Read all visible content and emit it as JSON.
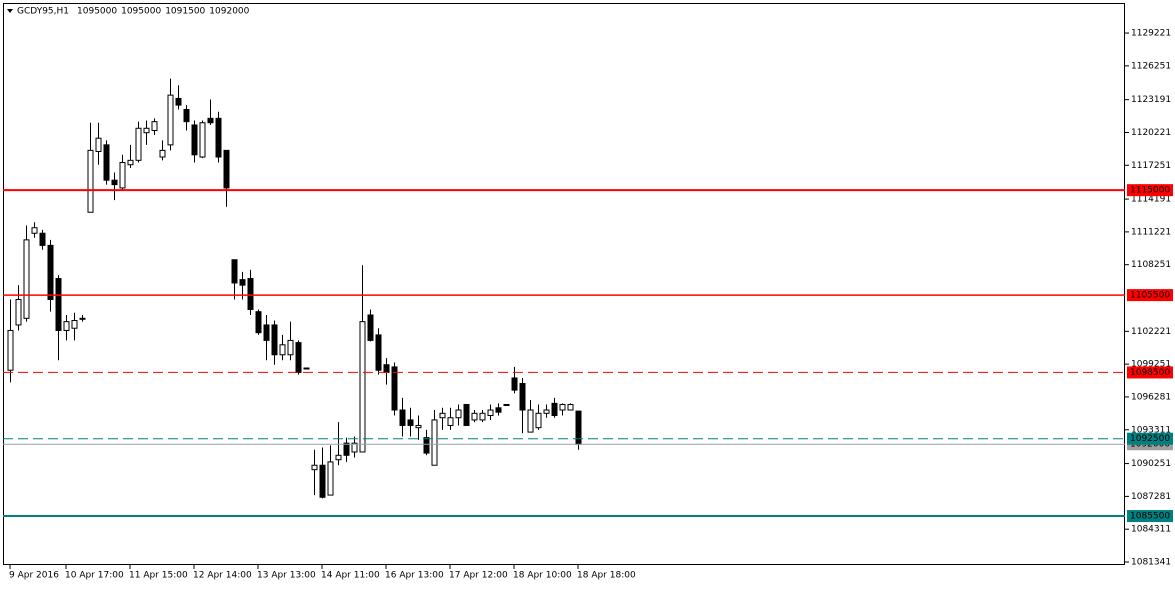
{
  "chart_data": {
    "type": "candlestick",
    "symbol": "GCDY95,H1",
    "categories": [
      "9 Apr 2016",
      null,
      null,
      null,
      null,
      null,
      null,
      "10 Apr 17:00",
      null,
      null,
      null,
      null,
      null,
      null,
      null,
      "11 Apr 15:00",
      null,
      null,
      null,
      null,
      null,
      null,
      null,
      "12 Apr 14:00",
      null,
      null,
      null,
      null,
      null,
      null,
      null,
      "13 Apr 13:00",
      null,
      null,
      null,
      null,
      null,
      null,
      null,
      "14 Apr 11:00",
      null,
      null,
      null,
      null,
      null,
      null,
      null,
      "16 Apr 13:00",
      null,
      null,
      null,
      null,
      null,
      null,
      null,
      "17 Apr 12:00",
      null,
      null,
      null,
      null,
      null,
      null,
      null,
      "18 Apr 10:00",
      null,
      null,
      null,
      null,
      null,
      null,
      null,
      "18 Apr 18:00"
    ],
    "open": [
      1098700,
      1102800,
      1103400,
      1111100,
      1111100,
      1110000,
      1107000,
      1102300,
      1102500,
      1103400,
      1113000,
      1118500,
      1119100,
      1115900,
      1115200,
      1117300,
      1117700,
      1120200,
      1120400,
      1118000,
      1119100,
      1123300,
      1122300,
      1120900,
      1118000,
      1121500,
      1121500,
      1118600,
      1108700,
      1106900,
      1107000,
      1104000,
      1102800,
      1102800,
      1100100,
      1100100,
      1101200,
      1098900,
      1089700,
      1090100,
      1087400,
      1090600,
      1092100,
      1091300,
      1091300,
      1103700,
      1101900,
      1099200,
      1099000,
      1095100,
      1094200,
      1093500,
      1092600,
      1090100,
      1094400,
      1093700,
      1094400,
      1095600,
      1094200,
      1094200,
      1094600,
      1095300,
      1095600,
      1098000,
      1097500,
      1093100,
      1093500,
      1094800,
      1095700,
      1095100,
      1095100,
      1095000
    ],
    "high": [
      1105100,
      1106400,
      1111800,
      1112100,
      1111400,
      1110500,
      1107300,
      1103700,
      1103900,
      1103700,
      1121100,
      1121100,
      1119500,
      1116600,
      1118200,
      1119100,
      1121200,
      1121300,
      1121500,
      1119500,
      1125100,
      1124500,
      1122700,
      1121300,
      1121300,
      1123200,
      1122100,
      1118600,
      1108700,
      1107600,
      1107800,
      1104200,
      1103700,
      1103200,
      1101900,
      1103100,
      1101400,
      1098900,
      1091500,
      1091700,
      1091900,
      1094000,
      1092600,
      1092700,
      1108200,
      1104200,
      1102500,
      1099800,
      1099400,
      1096200,
      1095300,
      1094600,
      1093300,
      1095100,
      1095300,
      1095300,
      1095600,
      1095600,
      1095100,
      1095100,
      1095600,
      1095700,
      1095600,
      1099000,
      1098000,
      1096000,
      1095600,
      1095600,
      1096200,
      1095700,
      1095700,
      1095000
    ],
    "low": [
      1097600,
      1102300,
      1103100,
      1110700,
      1109600,
      1104000,
      1099600,
      1101400,
      1101400,
      1103100,
      1113000,
      1117300,
      1115500,
      1114100,
      1115000,
      1117000,
      1117500,
      1119100,
      1120000,
      1117700,
      1118600,
      1122300,
      1120400,
      1117500,
      1117900,
      1120900,
      1117500,
      1113500,
      1105100,
      1105100,
      1103700,
      1101900,
      1099600,
      1099200,
      1099600,
      1099600,
      1098300,
      1098900,
      1087400,
      1087100,
      1087400,
      1090100,
      1090400,
      1090800,
      1091300,
      1101300,
      1098300,
      1097400,
      1094600,
      1092700,
      1092700,
      1092400,
      1091000,
      1090100,
      1093300,
      1093300,
      1093700,
      1093700,
      1094000,
      1094000,
      1094200,
      1094600,
      1095600,
      1096600,
      1093000,
      1093100,
      1093300,
      1094400,
      1094400,
      1094600,
      1095100,
      1091500
    ],
    "close": [
      1102300,
      1105100,
      1110500,
      1111600,
      1110000,
      1105100,
      1102300,
      1103100,
      1103200,
      1103400,
      1118600,
      1119700,
      1115900,
      1115500,
      1117500,
      1117700,
      1120600,
      1120600,
      1121200,
      1118600,
      1123600,
      1122700,
      1121200,
      1118200,
      1121100,
      1121100,
      1118000,
      1115200,
      1106600,
      1106400,
      1104200,
      1102100,
      1101400,
      1100100,
      1101000,
      1101400,
      1098500,
      1098900,
      1090100,
      1087200,
      1090400,
      1091000,
      1091000,
      1092100,
      1103100,
      1101400,
      1098700,
      1098500,
      1095100,
      1093700,
      1093700,
      1093700,
      1091200,
      1094200,
      1094800,
      1094400,
      1095100,
      1093700,
      1094800,
      1094800,
      1095100,
      1094900,
      1095600,
      1096900,
      1095100,
      1095100,
      1094800,
      1095100,
      1094600,
      1095600,
      1095600,
      1092000
    ],
    "up_color": "#ffffff",
    "down_color": "#000000",
    "ylim": [
      1081070,
      1131940
    ],
    "yticks": [
      1081341,
      1084311,
      1087281,
      1090251,
      1093311,
      1096281,
      1099251,
      1102221,
      1108251,
      1111221,
      1114191,
      1117251,
      1120221,
      1123191,
      1126251,
      1129221
    ],
    "levels": [
      {
        "value": 1115000,
        "color": "#ff0000",
        "style": "solid",
        "width": 2
      },
      {
        "value": 1105500,
        "color": "#ff0000",
        "style": "solid",
        "width": 1.5
      },
      {
        "value": 1098500,
        "color": "#ff0000",
        "style": "dashed",
        "width": 1
      },
      {
        "value": 1092500,
        "color": "#008080",
        "style": "dashed",
        "width": 1
      },
      {
        "value": 1085500,
        "color": "#008080",
        "style": "solid",
        "width": 2
      }
    ],
    "current_price_color": "#a0a0a0"
  }
}
